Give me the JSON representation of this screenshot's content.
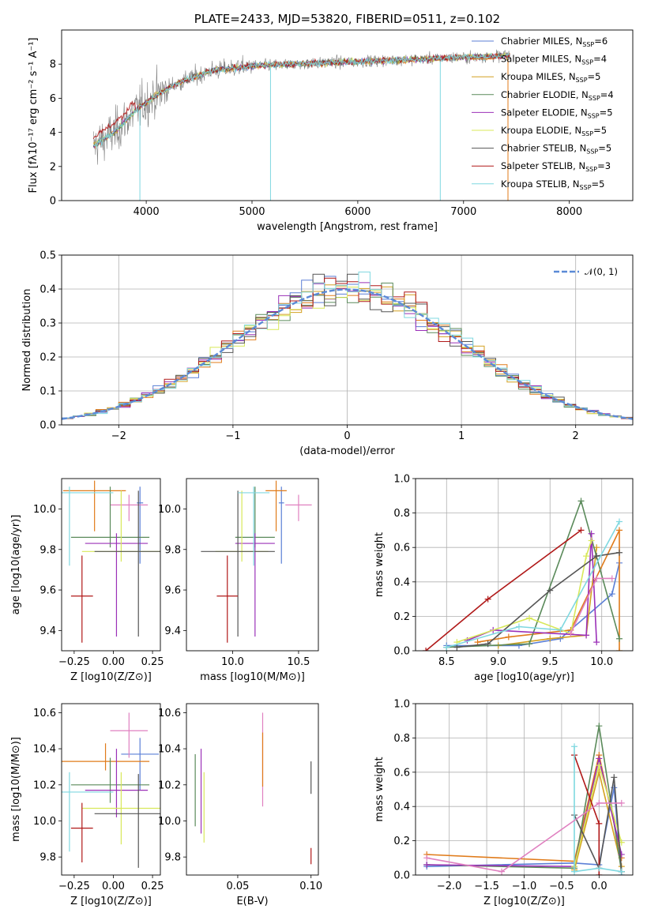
{
  "chart_data": [
    {
      "type": "line",
      "title": "PLATE=2433, MJD=53820, FIBERID=0511, z=0.102",
      "xlabel": "wavelength [Angstrom, rest frame]",
      "ylabel": "Flux [fλ10⁻¹⁷ erg cm⁻² s⁻¹ A⁻¹]",
      "xlim": [
        3200,
        8600
      ],
      "ylim": [
        0,
        10
      ],
      "xticks": [
        4000,
        5000,
        6000,
        7000,
        8000
      ],
      "yticks": [
        0,
        2,
        4,
        6,
        8
      ],
      "legend_position": "right",
      "data_color": "#808080",
      "continuum": {
        "x": [
          3500,
          3700,
          3900,
          4100,
          4300,
          4600,
          5000,
          5400,
          5800,
          6200,
          6600,
          7000,
          7400
        ],
        "y": [
          3.2,
          4.0,
          5.3,
          6.2,
          6.9,
          7.6,
          7.9,
          8.0,
          8.1,
          8.2,
          8.3,
          8.4,
          8.5
        ]
      },
      "series": [
        {
          "name": "Chabrier MILES, N_SSP=6",
          "color": "#5b7fd6"
        },
        {
          "name": "Salpeter MILES, N_SSP=4",
          "color": "#e07b1a"
        },
        {
          "name": "Kroupa MILES, N_SSP=5",
          "color": "#d4a020"
        },
        {
          "name": "Chabrier ELODIE, N_SSP=4",
          "color": "#5a8a5a"
        },
        {
          "name": "Salpeter ELODIE, N_SSP=5",
          "color": "#9b30b8"
        },
        {
          "name": "Kroupa ELODIE, N_SSP=5",
          "color": "#d8e85a"
        },
        {
          "name": "Chabrier STELIB, N_SSP=5",
          "color": "#555555"
        },
        {
          "name": "Salpeter STELIB, N_SSP=3",
          "color": "#b01818"
        },
        {
          "name": "Kroupa STELIB, N_SSP=5",
          "color": "#7fd8e0"
        }
      ],
      "legend": [
        {
          "model": "Chabrier MILES, N",
          "sub": "SSP",
          "n": "=6"
        },
        {
          "model": "Salpeter MILES, N",
          "sub": "SSP",
          "n": "=4"
        },
        {
          "model": "Kroupa MILES, N",
          "sub": "SSP",
          "n": "=5"
        },
        {
          "model": "Chabrier ELODIE, N",
          "sub": "SSP",
          "n": "=4"
        },
        {
          "model": "Salpeter ELODIE, N",
          "sub": "SSP",
          "n": "=5"
        },
        {
          "model": "Kroupa ELODIE, N",
          "sub": "SSP",
          "n": "=5"
        },
        {
          "model": "Chabrier STELIB, N",
          "sub": "SSP",
          "n": "=5"
        },
        {
          "model": "Salpeter STELIB, N",
          "sub": "SSP",
          "n": "=3"
        },
        {
          "model": "Kroupa STELIB, N",
          "sub": "SSP",
          "n": "=5"
        }
      ]
    },
    {
      "type": "area",
      "xlabel": "(data-model)/error",
      "ylabel": "Normed distribution",
      "xlim": [
        -2.5,
        2.5
      ],
      "ylim": [
        0,
        0.5
      ],
      "xticks": [
        -2,
        -1,
        0,
        1,
        2
      ],
      "xtick_labels": [
        "−2",
        "−1",
        "0",
        "1",
        "2"
      ],
      "yticks": [
        0.0,
        0.1,
        0.2,
        0.3,
        0.4,
        0.5
      ],
      "ytick_labels": [
        "0.0",
        "0.1",
        "0.2",
        "0.3",
        "0.4",
        "0.5"
      ],
      "grid": true,
      "bin_width": 0.1,
      "gaussian": {
        "name": "N(0, 1)",
        "legend_label": "𝒩(0, 1)",
        "mean": 0,
        "sigma": 1,
        "color": "#5b8ad6"
      },
      "legend_position": "top-right"
    },
    {
      "type": "scatter",
      "xlabel": "Z [log10(Z/Z⊙)]",
      "ylabel": "age [log10(age/yr)]",
      "xlim": [
        -0.33,
        0.3
      ],
      "ylim": [
        9.3,
        10.15
      ],
      "xticks": [
        -0.25,
        0.0,
        0.25
      ],
      "xtick_labels": [
        "−0.25",
        "0.00",
        "0.25"
      ],
      "yticks": [
        9.4,
        9.6,
        9.8,
        10.0
      ],
      "ytick_labels": [
        "9.4",
        "9.6",
        "9.8",
        "10.0"
      ],
      "points": [
        {
          "x": 0.17,
          "y": 10.03,
          "xerr": 0.02,
          "yerr_lo": 0.3,
          "yerr_hi": 0.08,
          "color": "#5b7fd6"
        },
        {
          "x": -0.12,
          "y": 10.09,
          "xerr": 0.2,
          "yerr_lo": 0.2,
          "yerr_hi": 0.05,
          "color": "#e07b1a"
        },
        {
          "x": 0.1,
          "y": 10.02,
          "xerr": 0.12,
          "yerr_lo": 0.08,
          "yerr_hi": 0.05,
          "color": "#e080c0"
        },
        {
          "x": -0.02,
          "y": 9.86,
          "xerr": 0.25,
          "yerr_lo": 0.05,
          "yerr_hi": 0.25,
          "color": "#5a8a5a"
        },
        {
          "x": 0.02,
          "y": 9.83,
          "xerr": 0.2,
          "yerr_lo": 0.46,
          "yerr_hi": 0.05,
          "color": "#9b30b8"
        },
        {
          "x": 0.05,
          "y": 9.79,
          "xerr": 0.25,
          "yerr_lo": 0.05,
          "yerr_hi": 0.3,
          "color": "#d8e85a"
        },
        {
          "x": 0.16,
          "y": 9.79,
          "xerr": 0.28,
          "yerr_lo": 0.42,
          "yerr_hi": 0.3,
          "color": "#555555"
        },
        {
          "x": -0.2,
          "y": 9.57,
          "xerr": 0.07,
          "yerr_lo": 0.23,
          "yerr_hi": 0.2,
          "color": "#b01818"
        },
        {
          "x": -0.28,
          "y": 10.08,
          "xerr": 0.28,
          "yerr_lo": 0.36,
          "yerr_hi": 0.03,
          "color": "#7fd8e0"
        }
      ]
    },
    {
      "type": "scatter",
      "xlabel": "mass [log10(M/M⊙)]",
      "xlim": [
        9.65,
        10.65
      ],
      "ylim": [
        9.3,
        10.15
      ],
      "xticks": [
        10.0,
        10.5
      ],
      "xtick_labels": [
        "10.0",
        "10.5"
      ],
      "yticks": [
        9.4,
        9.6,
        9.8,
        10.0
      ],
      "ytick_labels": [
        "9.4",
        "9.6",
        "9.8",
        "10.0"
      ],
      "points": [
        {
          "x": 10.37,
          "y": 10.03,
          "xerr": 0.02,
          "yerr_lo": 0.3,
          "yerr_hi": 0.08,
          "color": "#5b7fd6"
        },
        {
          "x": 10.33,
          "y": 10.09,
          "xerr": 0.08,
          "yerr_lo": 0.2,
          "yerr_hi": 0.05,
          "color": "#e07b1a"
        },
        {
          "x": 10.5,
          "y": 10.02,
          "xerr": 0.1,
          "yerr_lo": 0.08,
          "yerr_hi": 0.05,
          "color": "#e080c0"
        },
        {
          "x": 10.17,
          "y": 9.86,
          "xerr": 0.15,
          "yerr_lo": 0.05,
          "yerr_hi": 0.25,
          "color": "#5a8a5a"
        },
        {
          "x": 10.17,
          "y": 9.83,
          "xerr": 0.15,
          "yerr_lo": 0.46,
          "yerr_hi": 0.05,
          "color": "#9b30b8"
        },
        {
          "x": 10.07,
          "y": 9.79,
          "xerr": 0.2,
          "yerr_lo": 0.05,
          "yerr_hi": 0.3,
          "color": "#d8e85a"
        },
        {
          "x": 10.04,
          "y": 9.79,
          "xerr": 0.28,
          "yerr_lo": 0.42,
          "yerr_hi": 0.3,
          "color": "#555555"
        },
        {
          "x": 9.96,
          "y": 9.57,
          "xerr": 0.08,
          "yerr_lo": 0.23,
          "yerr_hi": 0.2,
          "color": "#b01818"
        },
        {
          "x": 10.16,
          "y": 10.08,
          "xerr": 0.12,
          "yerr_lo": 0.36,
          "yerr_hi": 0.03,
          "color": "#7fd8e0"
        }
      ]
    },
    {
      "type": "line",
      "xlabel": "age [log10(age/yr)]",
      "ylabel": "mass weight",
      "xlim": [
        8.2,
        10.3
      ],
      "ylim": [
        0,
        1.0
      ],
      "xticks": [
        8.5,
        9.0,
        9.5,
        10.0
      ],
      "xtick_labels": [
        "8.5",
        "9.0",
        "9.5",
        "10.0"
      ],
      "yticks": [
        0.0,
        0.2,
        0.4,
        0.6,
        0.8,
        1.0
      ],
      "ytick_labels": [
        "0.0",
        "0.2",
        "0.4",
        "0.6",
        "0.8",
        "1.0"
      ],
      "grid": true,
      "series": [
        {
          "name": "Chabrier MILES",
          "color": "#5b7fd6",
          "x": [
            8.5,
            9.2,
            9.6,
            10.1,
            10.17
          ],
          "y": [
            0.03,
            0.03,
            0.07,
            0.33,
            0.51
          ]
        },
        {
          "name": "Salpeter MILES",
          "color": "#e07b1a",
          "x": [
            8.8,
            9.1,
            9.7,
            10.17,
            10.17
          ],
          "y": [
            0.05,
            0.08,
            0.12,
            0.7,
            0.0
          ]
        },
        {
          "name": "Kroupa MILES",
          "color": "#d4a020",
          "x": [
            9.0,
            9.5,
            9.85,
            9.95
          ],
          "y": [
            0.03,
            0.07,
            0.09,
            0.6
          ]
        },
        {
          "name": "Chabrier ELODIE",
          "color": "#5a8a5a",
          "x": [
            8.5,
            9.3,
            9.8,
            10.17
          ],
          "y": [
            0.02,
            0.04,
            0.87,
            0.07
          ]
        },
        {
          "name": "Salpeter ELODIE",
          "color": "#9b30b8",
          "x": [
            8.7,
            8.95,
            9.85,
            9.9,
            9.95
          ],
          "y": [
            0.06,
            0.12,
            0.09,
            0.68,
            0.05
          ]
        },
        {
          "name": "Kroupa ELODIE",
          "color": "#d8e85a",
          "x": [
            8.6,
            9.3,
            9.7,
            9.85,
            9.9
          ],
          "y": [
            0.05,
            0.19,
            0.1,
            0.55,
            0.64
          ]
        },
        {
          "name": "Chabrier STELIB",
          "color": "#555555",
          "x": [
            8.6,
            8.9,
            9.5,
            9.95,
            10.17
          ],
          "y": [
            0.02,
            0.04,
            0.35,
            0.55,
            0.57
          ]
        },
        {
          "name": "Salpeter STELIB",
          "color": "#b01818",
          "x": [
            8.3,
            8.9,
            9.8
          ],
          "y": [
            0.0,
            0.3,
            0.7
          ]
        },
        {
          "name": "Kroupa STELIB",
          "color": "#7fd8e0",
          "x": [
            8.5,
            9.2,
            9.6,
            10.17
          ],
          "y": [
            0.02,
            0.14,
            0.12,
            0.75
          ]
        },
        {
          "name": "Pink",
          "color": "#e080c0",
          "x": [
            9.7,
            9.95,
            10.1
          ],
          "y": [
            0.1,
            0.42,
            0.42
          ]
        }
      ]
    },
    {
      "type": "scatter",
      "xlabel": "Z [log10(Z/Z⊙)]",
      "ylabel": "mass [log10(M/M⊙)]",
      "xlim": [
        -0.33,
        0.3
      ],
      "ylim": [
        9.7,
        10.65
      ],
      "xticks": [
        -0.25,
        0.0,
        0.25
      ],
      "xtick_labels": [
        "−0.25",
        "0.00",
        "0.25"
      ],
      "yticks": [
        9.8,
        10.0,
        10.2,
        10.4,
        10.6
      ],
      "ytick_labels": [
        "9.8",
        "10.0",
        "10.2",
        "10.4",
        "10.6"
      ],
      "points": [
        {
          "x": 0.17,
          "y": 10.37,
          "xerr": 0.12,
          "yerr_lo": 0.2,
          "yerr_hi": 0.09,
          "color": "#5b7fd6"
        },
        {
          "x": -0.05,
          "y": 10.33,
          "xerr": 0.28,
          "yerr_lo": 0.05,
          "yerr_hi": 0.1,
          "color": "#e07b1a"
        },
        {
          "x": 0.1,
          "y": 10.5,
          "xerr": 0.12,
          "yerr_lo": 0.15,
          "yerr_hi": 0.1,
          "color": "#e080c0"
        },
        {
          "x": -0.02,
          "y": 10.2,
          "xerr": 0.25,
          "yerr_lo": 0.1,
          "yerr_hi": 0.15,
          "color": "#5a8a5a"
        },
        {
          "x": 0.02,
          "y": 10.17,
          "xerr": 0.2,
          "yerr_lo": 0.15,
          "yerr_hi": 0.23,
          "color": "#9b30b8"
        },
        {
          "x": 0.05,
          "y": 10.07,
          "xerr": 0.25,
          "yerr_lo": 0.2,
          "yerr_hi": 0.2,
          "color": "#d8e85a"
        },
        {
          "x": 0.16,
          "y": 10.04,
          "xerr": 0.28,
          "yerr_lo": 0.3,
          "yerr_hi": 0.22,
          "color": "#555555"
        },
        {
          "x": -0.2,
          "y": 9.96,
          "xerr": 0.07,
          "yerr_lo": 0.19,
          "yerr_hi": 0.14,
          "color": "#b01818"
        },
        {
          "x": -0.28,
          "y": 10.16,
          "xerr": 0.28,
          "yerr_lo": 0.33,
          "yerr_hi": 0.11,
          "color": "#7fd8e0"
        }
      ]
    },
    {
      "type": "scatter",
      "xlabel": "E(B-V)",
      "xlim": [
        0.015,
        0.105
      ],
      "ylim": [
        9.7,
        10.65
      ],
      "xticks": [
        0.05,
        0.1
      ],
      "xtick_labels": [
        "0.05",
        "0.10"
      ],
      "yticks": [
        9.8,
        10.0,
        10.2,
        10.4,
        10.6
      ],
      "ytick_labels": [
        "9.8",
        "10.0",
        "10.2",
        "10.4",
        "10.6"
      ],
      "points": [
        {
          "x": 0.021,
          "y": 10.17,
          "yerr_lo": 0.2,
          "yerr_hi": 0.2,
          "color": "#5a8a5a"
        },
        {
          "x": 0.025,
          "y": 10.17,
          "yerr_lo": 0.24,
          "yerr_hi": 0.23,
          "color": "#9b30b8"
        },
        {
          "x": 0.027,
          "y": 10.07,
          "yerr_lo": 0.19,
          "yerr_hi": 0.2,
          "color": "#d8e85a"
        },
        {
          "x": 0.067,
          "y": 10.33,
          "yerr_lo": 0.25,
          "yerr_hi": 0.27,
          "color": "#e080c0"
        },
        {
          "x": 0.067,
          "y": 10.33,
          "yerr_lo": 0.14,
          "yerr_hi": 0.16,
          "color": "#e07b1a"
        },
        {
          "x": 0.1,
          "y": 10.3,
          "yerr_lo": 0.15,
          "yerr_hi": 0.03,
          "color": "#555555"
        },
        {
          "x": 0.1,
          "y": 9.8,
          "yerr_lo": 0.04,
          "yerr_hi": 0.05,
          "color": "#b01818"
        }
      ]
    },
    {
      "type": "line",
      "xlabel": "Z [log10(Z/Z⊙)]",
      "ylabel": "mass weight",
      "xlim": [
        -2.45,
        0.45
      ],
      "ylim": [
        0,
        1.0
      ],
      "xticks": [
        -2.0,
        -1.5,
        -1.0,
        -0.5,
        0.0
      ],
      "xtick_labels": [
        "−2.0",
        "−1.5",
        "−1.0",
        "−0.5",
        "0.0"
      ],
      "yticks": [
        0.0,
        0.2,
        0.4,
        0.6,
        0.8,
        1.0
      ],
      "ytick_labels": [
        "0.0",
        "0.2",
        "0.4",
        "0.6",
        "0.8",
        "1.0"
      ],
      "grid": true,
      "series": [
        {
          "name": "Chabrier MILES",
          "color": "#5b7fd6",
          "x": [
            -2.3,
            -0.33,
            0.0,
            0.2,
            0.3
          ],
          "y": [
            0.05,
            0.07,
            0.06,
            0.51,
            0.0
          ]
        },
        {
          "name": "Salpeter MILES",
          "color": "#e07b1a",
          "x": [
            -2.3,
            -0.33,
            0.0,
            0.3
          ],
          "y": [
            0.12,
            0.08,
            0.7,
            0.1
          ]
        },
        {
          "name": "Kroupa MILES",
          "color": "#d4a020",
          "x": [
            -0.33,
            0.0,
            0.3
          ],
          "y": [
            0.03,
            0.6,
            0.05
          ]
        },
        {
          "name": "Chabrier ELODIE",
          "color": "#5a8a5a",
          "x": [
            -2.3,
            -0.33,
            0.0,
            0.3
          ],
          "y": [
            0.06,
            0.04,
            0.87,
            0.02
          ]
        },
        {
          "name": "Salpeter ELODIE",
          "color": "#9b30b8",
          "x": [
            -2.3,
            -0.33,
            0.0,
            0.3
          ],
          "y": [
            0.06,
            0.05,
            0.68,
            0.12
          ]
        },
        {
          "name": "Kroupa ELODIE",
          "color": "#d8e85a",
          "x": [
            -0.33,
            0.0,
            0.3
          ],
          "y": [
            0.05,
            0.64,
            0.19
          ]
        },
        {
          "name": "Chabrier STELIB",
          "color": "#555555",
          "x": [
            -0.33,
            0.0,
            0.2,
            0.3
          ],
          "y": [
            0.35,
            0.04,
            0.57,
            0.02
          ]
        },
        {
          "name": "Salpeter STELIB",
          "color": "#b01818",
          "x": [
            -0.33,
            0.0,
            0.0
          ],
          "y": [
            0.7,
            0.3,
            0.0
          ]
        },
        {
          "name": "Kroupa STELIB",
          "color": "#7fd8e0",
          "x": [
            -0.33,
            -0.33,
            0.0,
            0.3
          ],
          "y": [
            0.75,
            0.02,
            0.04,
            0.02
          ]
        },
        {
          "name": "Pink",
          "color": "#e080c0",
          "x": [
            -2.3,
            -1.3,
            0.0,
            0.3
          ],
          "y": [
            0.1,
            0.02,
            0.42,
            0.42
          ]
        }
      ]
    }
  ]
}
